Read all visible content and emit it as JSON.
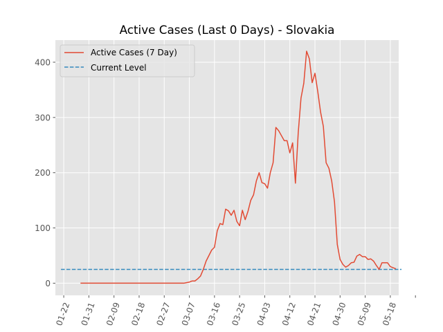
{
  "chart_data": {
    "type": "line",
    "title": "Active Cases (Last 0 Days) - Slovakia",
    "xlabel": "",
    "ylabel": "",
    "x_tick_labels": [
      "01-22",
      "01-31",
      "02-09",
      "02-18",
      "02-27",
      "03-07",
      "03-16",
      "03-25",
      "04-03",
      "04-12",
      "04-21",
      "04-30",
      "05-09",
      "05-18"
    ],
    "x_range_days": [
      -3,
      120
    ],
    "y_ticks": [
      0,
      100,
      200,
      300,
      400
    ],
    "ylim": [
      -22,
      440
    ],
    "grid": true,
    "legend_position": "top-left",
    "colors": {
      "active": "#e24a33",
      "current": "#348abd",
      "background": "#e5e5e5",
      "grid": "#ffffff"
    },
    "current_level": {
      "name": "Current Level",
      "y": 25,
      "x_start_day": -1,
      "x_end_day": 121,
      "style": "dashed"
    },
    "series": [
      {
        "name": "Active Cases (7 Day)",
        "x_start_day": 6,
        "values": [
          0,
          0,
          0,
          0,
          0,
          0,
          0,
          0,
          0,
          0,
          0,
          0,
          0,
          0,
          0,
          0,
          0,
          0,
          0,
          0,
          0,
          0,
          0,
          0,
          0,
          0,
          0,
          0,
          0,
          0,
          0,
          0,
          0,
          0,
          0,
          0,
          0,
          0,
          1,
          2,
          4,
          4,
          8,
          13,
          25,
          40,
          50,
          60,
          65,
          95,
          108,
          106,
          134,
          131,
          123,
          132,
          112,
          104,
          132,
          115,
          130,
          150,
          160,
          185,
          200,
          182,
          180,
          172,
          200,
          218,
          282,
          276,
          267,
          258,
          258,
          236,
          254,
          181,
          272,
          335,
          362,
          420,
          406,
          363,
          380,
          347,
          310,
          284,
          218,
          208,
          185,
          147,
          70,
          43,
          34,
          29,
          32,
          37,
          38,
          49,
          52,
          48,
          48,
          43,
          44,
          40,
          32,
          25,
          37,
          37,
          37,
          30,
          28,
          26
        ]
      }
    ]
  }
}
